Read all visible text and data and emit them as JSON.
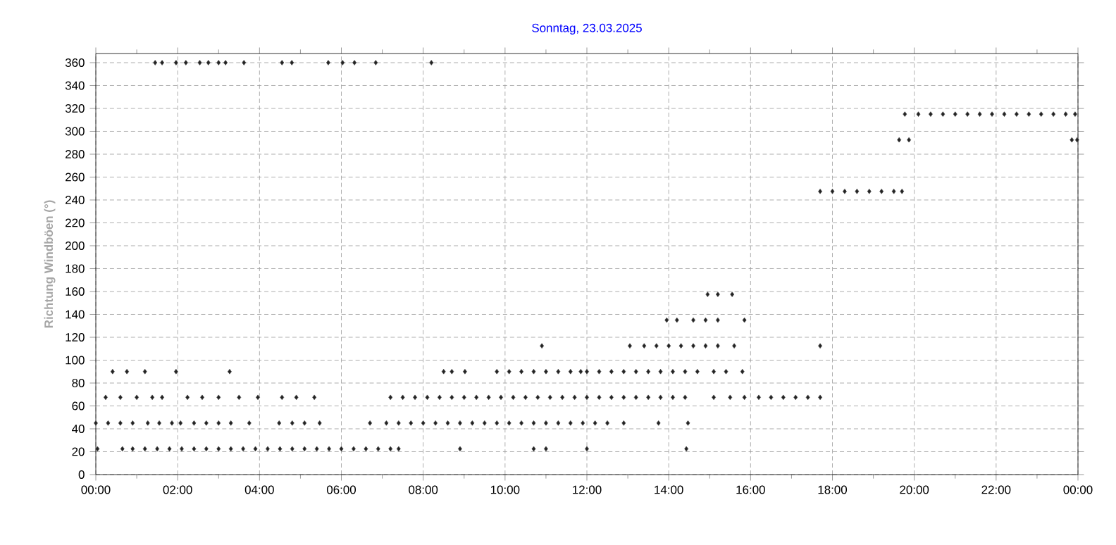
{
  "chart_data": {
    "type": "scatter",
    "title": "Sonntag, 23.03.2025",
    "ylabel": "Richtung Windböen  (°)",
    "xlim": [
      0,
      24
    ],
    "ylim": [
      0,
      368
    ],
    "xticks": [
      {
        "value": 0,
        "label": "00:00"
      },
      {
        "value": 2,
        "label": "02:00"
      },
      {
        "value": 4,
        "label": "04:00"
      },
      {
        "value": 6,
        "label": "06:00"
      },
      {
        "value": 8,
        "label": "08:00"
      },
      {
        "value": 10,
        "label": "10:00"
      },
      {
        "value": 12,
        "label": "12:00"
      },
      {
        "value": 14,
        "label": "14:00"
      },
      {
        "value": 16,
        "label": "16:00"
      },
      {
        "value": 18,
        "label": "18:00"
      },
      {
        "value": 20,
        "label": "20:00"
      },
      {
        "value": 22,
        "label": "22:00"
      },
      {
        "value": 24,
        "label": "00:00"
      }
    ],
    "yticks": [
      0,
      20,
      40,
      60,
      80,
      100,
      120,
      140,
      160,
      180,
      200,
      220,
      240,
      260,
      280,
      300,
      320,
      340,
      360
    ],
    "grid": true,
    "marker": "diamond",
    "series": [
      {
        "color": "#222222",
        "x": [
          0.04,
          0.65,
          0.9,
          1.2,
          1.5,
          1.8,
          2.1,
          2.4,
          2.7,
          3.0,
          3.3,
          3.6,
          3.9,
          4.2,
          4.5,
          4.8,
          5.1,
          5.4,
          5.7,
          6.0,
          6.3,
          6.6,
          6.9,
          7.2,
          7.4,
          8.9,
          10.7,
          11.0,
          12.0,
          14.43,
          0.0,
          0.3,
          0.6,
          0.9,
          1.27,
          1.55,
          1.86,
          2.07,
          2.4,
          2.7,
          3.0,
          3.3,
          3.75,
          4.48,
          4.8,
          5.1,
          5.47,
          6.7,
          7.1,
          7.4,
          7.7,
          8.0,
          8.3,
          8.6,
          8.9,
          9.2,
          9.5,
          9.8,
          10.1,
          10.4,
          10.7,
          11.0,
          11.3,
          11.6,
          11.9,
          12.2,
          12.5,
          12.9,
          13.75,
          14.47,
          0.24,
          0.6,
          1.0,
          1.38,
          1.62,
          2.24,
          2.6,
          3.0,
          3.5,
          3.96,
          4.55,
          4.9,
          5.34,
          7.2,
          7.5,
          7.8,
          8.1,
          8.4,
          8.7,
          9.0,
          9.3,
          9.6,
          9.9,
          10.2,
          10.5,
          10.8,
          11.1,
          11.4,
          11.7,
          12.0,
          12.3,
          12.6,
          12.9,
          13.2,
          13.5,
          13.8,
          14.1,
          14.4,
          15.1,
          15.5,
          15.85,
          16.2,
          16.5,
          16.8,
          17.1,
          17.4,
          17.7,
          0.41,
          0.76,
          1.2,
          1.96,
          3.27,
          8.5,
          8.7,
          9.02,
          9.8,
          10.1,
          10.4,
          10.7,
          11.0,
          11.3,
          11.6,
          11.85,
          12.0,
          12.3,
          12.6,
          12.9,
          13.2,
          13.5,
          13.8,
          14.1,
          14.4,
          14.7,
          15.1,
          15.4,
          15.8,
          10.9,
          13.05,
          13.4,
          13.7,
          14.0,
          14.3,
          14.6,
          14.9,
          15.2,
          15.6,
          17.7,
          13.95,
          14.2,
          14.6,
          14.9,
          15.2,
          15.85,
          14.95,
          15.2,
          15.55,
          17.7,
          18.0,
          18.3,
          18.6,
          18.9,
          19.2,
          19.5,
          19.7,
          19.63,
          19.87,
          23.85,
          23.98,
          19.77,
          20.1,
          20.4,
          20.7,
          21.0,
          21.3,
          21.6,
          21.9,
          22.2,
          22.5,
          22.8,
          23.1,
          23.4,
          23.7,
          23.93,
          1.45,
          1.62,
          1.96,
          2.2,
          2.54,
          2.75,
          3.0,
          3.17,
          3.62,
          4.55,
          4.79,
          5.68,
          6.03,
          6.32,
          6.84,
          8.2
        ],
        "values": [
          22.5,
          22.5,
          22.5,
          22.5,
          22.5,
          22.5,
          22.5,
          22.5,
          22.5,
          22.5,
          22.5,
          22.5,
          22.5,
          22.5,
          22.5,
          22.5,
          22.5,
          22.5,
          22.5,
          22.5,
          22.5,
          22.5,
          22.5,
          22.5,
          22.5,
          22.5,
          22.5,
          22.5,
          22.5,
          22.5,
          45,
          45,
          45,
          45,
          45,
          45,
          45,
          45,
          45,
          45,
          45,
          45,
          45,
          45,
          45,
          45,
          45,
          45,
          45,
          45,
          45,
          45,
          45,
          45,
          45,
          45,
          45,
          45,
          45,
          45,
          45,
          45,
          45,
          45,
          45,
          45,
          45,
          45,
          45,
          45,
          67.5,
          67.5,
          67.5,
          67.5,
          67.5,
          67.5,
          67.5,
          67.5,
          67.5,
          67.5,
          67.5,
          67.5,
          67.5,
          67.5,
          67.5,
          67.5,
          67.5,
          67.5,
          67.5,
          67.5,
          67.5,
          67.5,
          67.5,
          67.5,
          67.5,
          67.5,
          67.5,
          67.5,
          67.5,
          67.5,
          67.5,
          67.5,
          67.5,
          67.5,
          67.5,
          67.5,
          67.5,
          67.5,
          67.5,
          67.5,
          67.5,
          67.5,
          67.5,
          67.5,
          67.5,
          67.5,
          67.5,
          90,
          90,
          90,
          90,
          90,
          90,
          90,
          90,
          90,
          90,
          90,
          90,
          90,
          90,
          90,
          90,
          90,
          90,
          90,
          90,
          90,
          90,
          90,
          90,
          90,
          90,
          90,
          90,
          90,
          112.5,
          112.5,
          112.5,
          112.5,
          112.5,
          112.5,
          112.5,
          112.5,
          112.5,
          112.5,
          112.5,
          135,
          135,
          135,
          135,
          135,
          135,
          157.5,
          157.5,
          157.5,
          247.5,
          247.5,
          247.5,
          247.5,
          247.5,
          247.5,
          247.5,
          247.5,
          292.5,
          292.5,
          292.5,
          292.5,
          315,
          315,
          315,
          315,
          315,
          315,
          315,
          315,
          315,
          315,
          315,
          315,
          315,
          315,
          315,
          360,
          360,
          360,
          360,
          360,
          360,
          360,
          360,
          360,
          360,
          360,
          360,
          360,
          360,
          360,
          360
        ]
      }
    ]
  }
}
